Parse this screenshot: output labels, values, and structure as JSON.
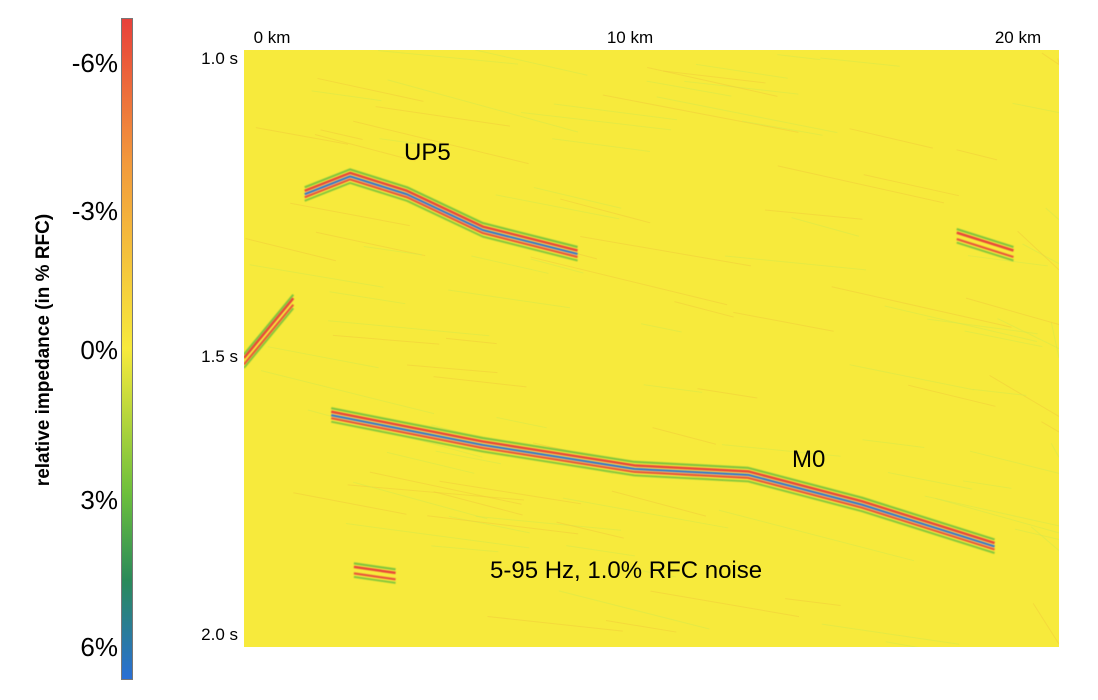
{
  "colorbar": {
    "label": "relative impedance (in % RFC)",
    "ticks": [
      "-6%",
      "-3%",
      "0%",
      "3%",
      "6%"
    ],
    "colors": [
      "#e8403a",
      "#f29a3c",
      "#f7ea3c",
      "#6cbf3c",
      "#2a8a5a",
      "#2a6fd6"
    ]
  },
  "chart_data": {
    "type": "heatmap",
    "title": "",
    "xlabel": "",
    "ylabel": "",
    "x_ticks": [
      "0 km",
      "10 km",
      "20 km"
    ],
    "y_ticks": [
      "1.0 s",
      "1.5 s",
      "2.0 s"
    ],
    "x_range_km": [
      -0.3,
      21.2
    ],
    "y_range_s": [
      1.0,
      2.0
    ],
    "background_color": "#f7ea3c",
    "annotations": [
      "UP5",
      "M0",
      "5-95 Hz, 1.0% RFC noise"
    ],
    "reflectors": [
      {
        "name": "UP5",
        "points_km_s": [
          [
            1.3,
            1.24
          ],
          [
            2.5,
            1.21
          ],
          [
            4.0,
            1.24
          ],
          [
            6.0,
            1.3
          ],
          [
            8.5,
            1.34
          ]
        ]
      },
      {
        "name": "M0",
        "points_km_s": [
          [
            2.0,
            1.61
          ],
          [
            6.0,
            1.66
          ],
          [
            10.0,
            1.7
          ],
          [
            13.0,
            1.71
          ],
          [
            16.0,
            1.76
          ],
          [
            19.5,
            1.83
          ]
        ]
      },
      {
        "name": "",
        "points_km_s": [
          [
            18.5,
            1.31
          ],
          [
            20.0,
            1.34
          ]
        ]
      },
      {
        "name": "",
        "points_km_s": [
          [
            2.6,
            1.87
          ],
          [
            3.7,
            1.88
          ]
        ]
      },
      {
        "name": "",
        "points_km_s": [
          [
            -0.3,
            1.52
          ],
          [
            1.0,
            1.42
          ]
        ]
      }
    ]
  }
}
